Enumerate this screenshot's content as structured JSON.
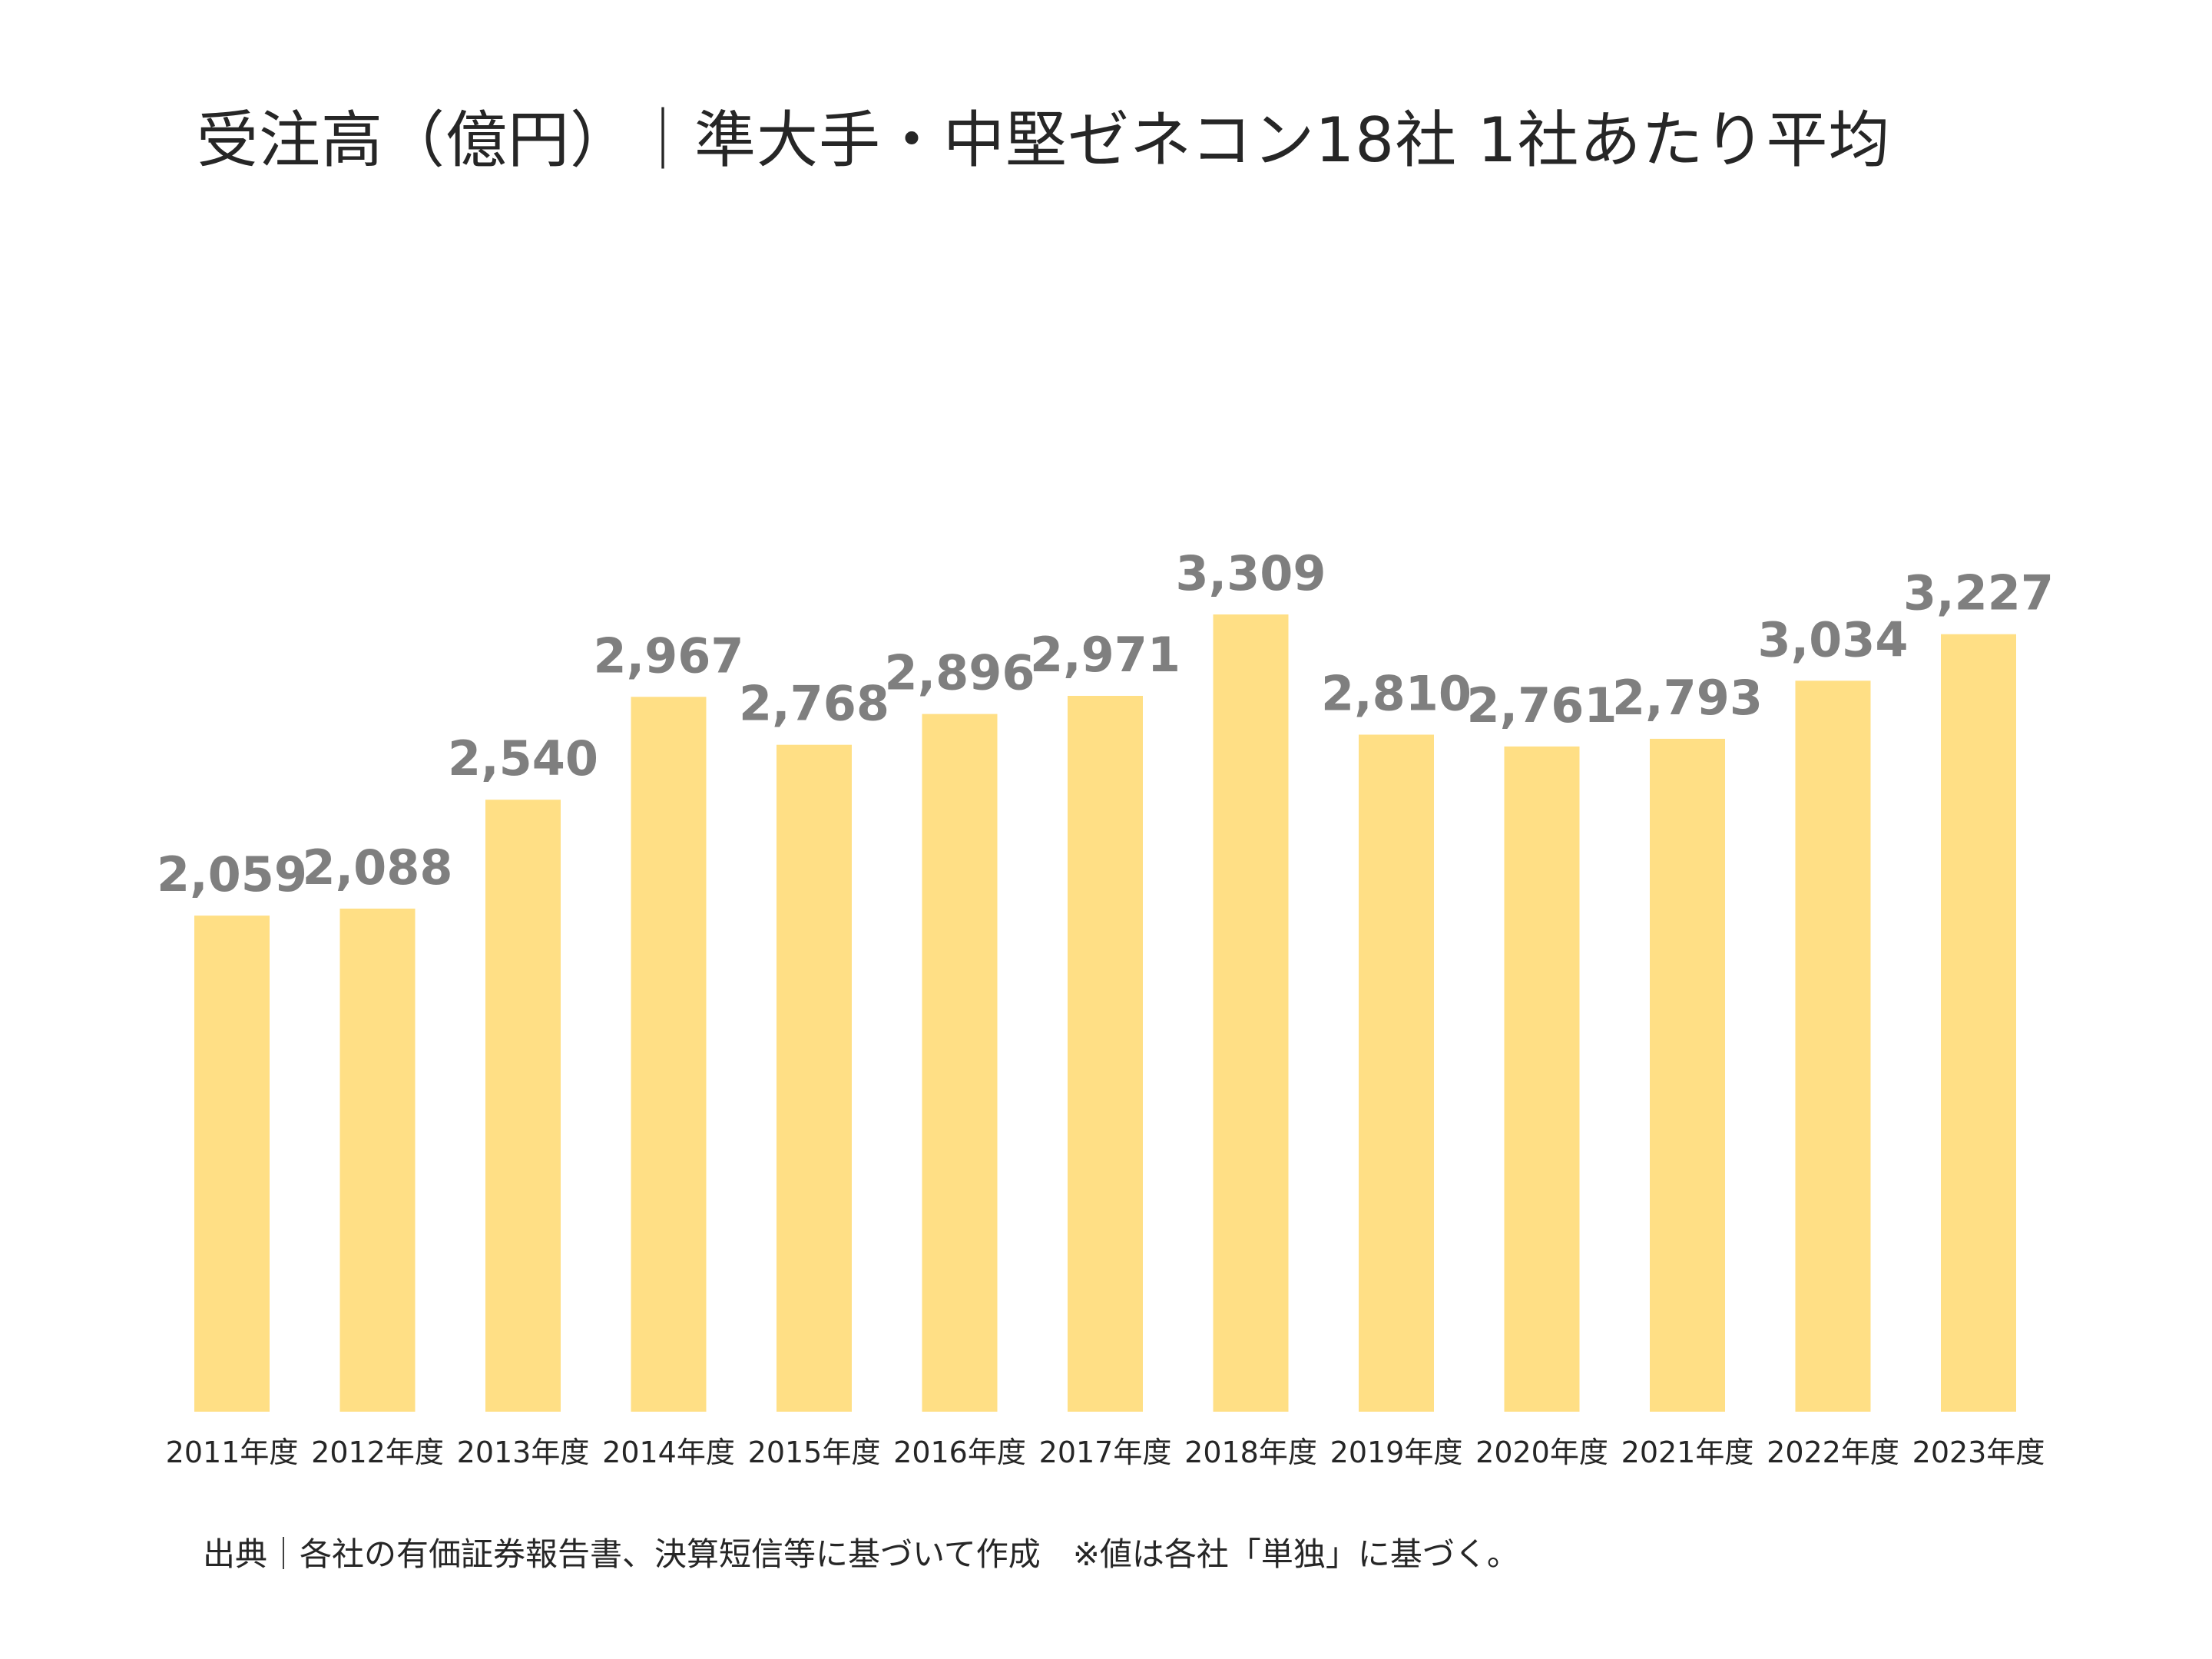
{
  "chart_data": {
    "type": "bar",
    "title": "受注高（億円）｜準大手・中堅ゼネコン18社 1社あたり平均",
    "categories": [
      "2011年度",
      "2012年度",
      "2013年度",
      "2014年度",
      "2015年度",
      "2016年度",
      "2017年度",
      "2018年度",
      "2019年度",
      "2020年度",
      "2021年度",
      "2022年度",
      "2023年度"
    ],
    "values": [
      2059,
      2088,
      2540,
      2967,
      2768,
      2896,
      2971,
      3309,
      2810,
      2761,
      2793,
      3034,
      3227
    ],
    "value_labels": [
      "2,059",
      "2,088",
      "2,540",
      "2,967",
      "2,768",
      "2,896",
      "2,971",
      "3,309",
      "2,810",
      "2,761",
      "2,793",
      "3,034",
      "3,227"
    ],
    "xlabel": "",
    "ylabel": "",
    "ylim": [
      0,
      3309
    ],
    "grid": false,
    "legend": "none",
    "bar_color": "#FFDF85",
    "value_label_color": "#7F7F7F"
  },
  "footer": {
    "source": "出典｜各社の有価証券報告書、決算短信等に基づいて作成　※値は各社「単独」に基づく。"
  }
}
